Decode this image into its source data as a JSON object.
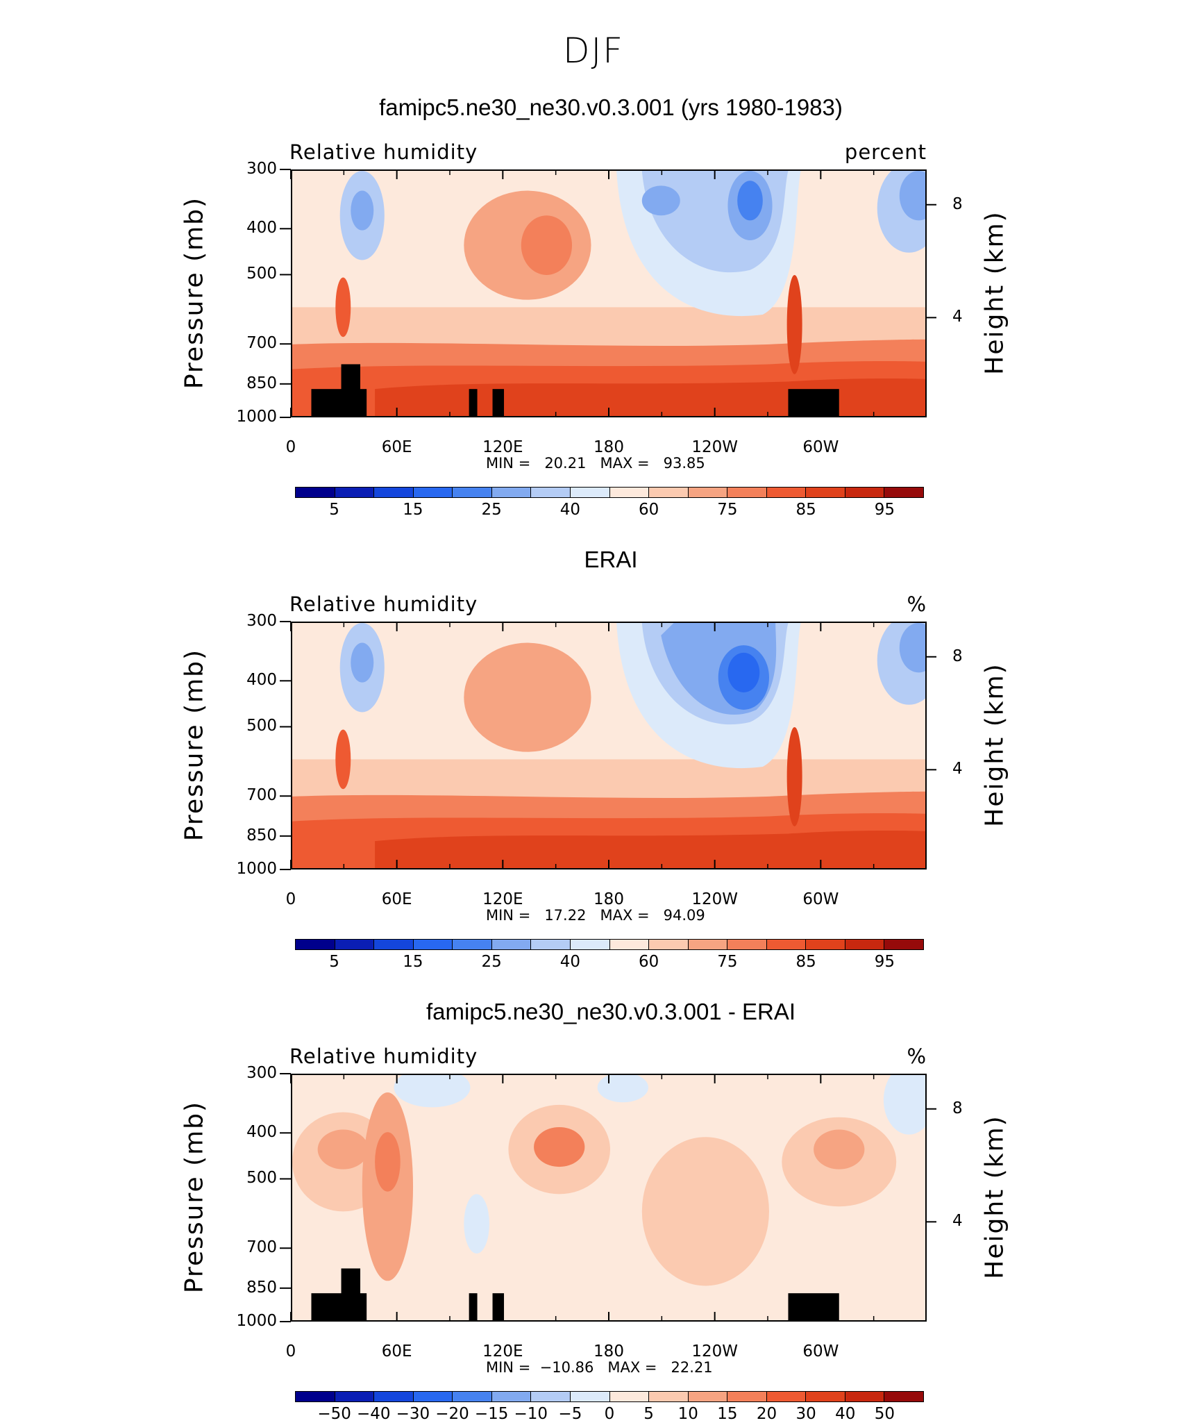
{
  "figure_title": "DJF",
  "panels": [
    {
      "title": "famipc5.ne30_ne30.v0.3.001 (yrs 1980-1983)",
      "left_label": "Relative humidity",
      "right_label": "percent",
      "minmax": "MIN =   20.21   MAX =   93.85",
      "kind": "model"
    },
    {
      "title": "ERAI",
      "left_label": "Relative humidity",
      "right_label": "%",
      "minmax": "MIN =   17.22   MAX =   94.09",
      "kind": "obs"
    },
    {
      "title": "famipc5.ne30_ne30.v0.3.001 - ERAI",
      "left_label": "Relative humidity",
      "right_label": "%",
      "minmax": "MIN =  −10.86   MAX =   22.21",
      "kind": "diff"
    }
  ],
  "chart_data": [
    {
      "type": "heatmap",
      "title": "famipc5.ne30_ne30.v0.3.001 (yrs 1980-1983)",
      "variable": "Relative humidity",
      "units": "percent",
      "xlabel": "",
      "ylabel": "Pressure (mb)",
      "ylabel_right": "Height (km)",
      "x_ticks": [
        "0",
        "60E",
        "120E",
        "180",
        "120W",
        "60W"
      ],
      "y_ticks": [
        "300",
        "400",
        "500",
        "700",
        "850",
        "1000"
      ],
      "y_right_ticks": [
        "8",
        "4"
      ],
      "ylim": [
        1000,
        300
      ],
      "min": 20.21,
      "max": 93.85,
      "colorbar_labels": [
        "5",
        "15",
        "25",
        "40",
        "60",
        "75",
        "85",
        "95"
      ]
    },
    {
      "type": "heatmap",
      "title": "ERAI",
      "variable": "Relative humidity",
      "units": "%",
      "xlabel": "",
      "ylabel": "Pressure (mb)",
      "ylabel_right": "Height (km)",
      "x_ticks": [
        "0",
        "60E",
        "120E",
        "180",
        "120W",
        "60W"
      ],
      "y_ticks": [
        "300",
        "400",
        "500",
        "700",
        "850",
        "1000"
      ],
      "y_right_ticks": [
        "8",
        "4"
      ],
      "ylim": [
        1000,
        300
      ],
      "min": 17.22,
      "max": 94.09,
      "colorbar_labels": [
        "5",
        "15",
        "25",
        "40",
        "60",
        "75",
        "85",
        "95"
      ]
    },
    {
      "type": "heatmap",
      "title": "famipc5.ne30_ne30.v0.3.001 - ERAI",
      "variable": "Relative humidity",
      "units": "%",
      "xlabel": "",
      "ylabel": "Pressure (mb)",
      "ylabel_right": "Height (km)",
      "x_ticks": [
        "0",
        "60E",
        "120E",
        "180",
        "120W",
        "60W"
      ],
      "y_ticks": [
        "300",
        "400",
        "500",
        "700",
        "850",
        "1000"
      ],
      "y_right_ticks": [
        "8",
        "4"
      ],
      "ylim": [
        1000,
        300
      ],
      "min": -10.86,
      "max": 22.21,
      "colorbar_labels": [
        "−50",
        "−40",
        "−30",
        "−20",
        "−15",
        "−10",
        "−5",
        "0",
        "5",
        "10",
        "15",
        "20",
        "30",
        "40",
        "50"
      ]
    }
  ],
  "axes": {
    "ylabel": "Pressure (mb)",
    "ylabel_right": "Height (km)",
    "x_ticks": [
      "0",
      "60E",
      "120E",
      "180",
      "120W",
      "60W"
    ],
    "y_ticks": [
      "300",
      "400",
      "500",
      "700",
      "850",
      "1000"
    ],
    "y_right_ticks": [
      "8",
      "4"
    ]
  },
  "colorbars": {
    "abs_labels": [
      "5",
      "15",
      "25",
      "40",
      "60",
      "75",
      "85",
      "95"
    ],
    "diff_labels": [
      "−50",
      "−40",
      "−30",
      "−20",
      "−15",
      "−10",
      "−5",
      "0",
      "5",
      "10",
      "15",
      "20",
      "30",
      "40",
      "50"
    ]
  },
  "colors": {
    "palette": [
      "#00008c",
      "#0a1eb4",
      "#1446dc",
      "#2868f0",
      "#4682f0",
      "#82aaf0",
      "#b4ccf5",
      "#dceafa",
      "#fde9dc",
      "#fbcab0",
      "#f6a482",
      "#f3805a",
      "#ee5a32",
      "#e0421c",
      "#c8280f",
      "#960a0a"
    ],
    "topography": "#000000"
  }
}
